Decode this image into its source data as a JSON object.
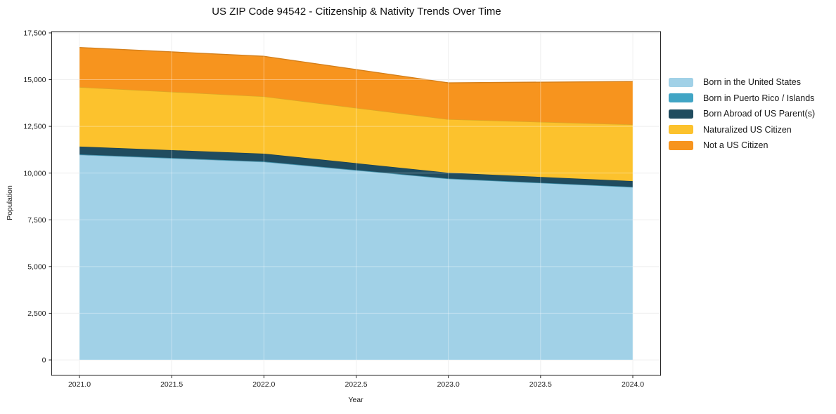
{
  "title": "US ZIP Code 94542 - Citizenship & Nativity Trends Over Time",
  "chart_data": {
    "type": "area",
    "stacked": true,
    "title": "US ZIP Code 94542 - Citizenship & Nativity Trends Over Time",
    "xlabel": "Year",
    "ylabel": "Population",
    "x": [
      2021,
      2022,
      2023,
      2024
    ],
    "series": [
      {
        "name": "Born in the United States",
        "color": "#A1D1E7",
        "values": [
          10975,
          10600,
          9700,
          9250
        ]
      },
      {
        "name": "Born in Puerto Rico / Islands",
        "color": "#41A5C5",
        "values": [
          25,
          20,
          10,
          10
        ]
      },
      {
        "name": "Born Abroad of US Parent(s)",
        "color": "#204C5F",
        "values": [
          420,
          420,
          310,
          310
        ]
      },
      {
        "name": "Naturalized US Citizen",
        "color": "#FCC22D",
        "values": [
          3180,
          3060,
          2860,
          3030
        ]
      },
      {
        "name": "Not a US Citizen",
        "color": "#F7941E",
        "values": [
          2120,
          2150,
          1950,
          2300
        ]
      }
    ],
    "totals": [
      16720,
      16250,
      14830,
      14900
    ],
    "x_tick_values": [
      2021.0,
      2021.5,
      2022.0,
      2022.5,
      2023.0,
      2023.5,
      2024.0
    ],
    "x_tick_labels": [
      "2021.0",
      "2021.5",
      "2022.0",
      "2022.5",
      "2023.0",
      "2023.5",
      "2024.0"
    ],
    "y_tick_values": [
      0,
      2500,
      5000,
      7500,
      10000,
      12500,
      15000,
      17500
    ],
    "y_tick_labels": [
      "0",
      "2,500",
      "5,000",
      "7,500",
      "10,000",
      "12,500",
      "15,000",
      "17,500"
    ],
    "ylim": [
      0,
      17500
    ],
    "xlim": [
      2021,
      2024
    ],
    "grid": true,
    "legend_position": "right",
    "grid_color": "#e7e7e7",
    "spine_color": "#262626"
  }
}
